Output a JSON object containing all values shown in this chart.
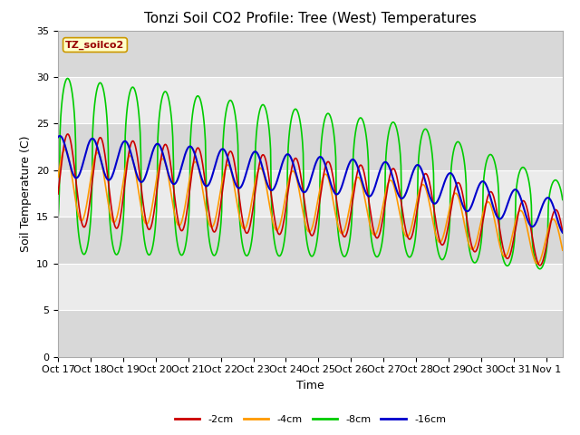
{
  "title": "Tonzi Soil CO2 Profile: Tree (West) Temperatures",
  "ylabel": "Soil Temperature (C)",
  "xlabel": "Time",
  "legend_label": "TZ_soilco2",
  "ylim": [
    0,
    35
  ],
  "series_labels": [
    "-2cm",
    "-4cm",
    "-8cm",
    "-16cm"
  ],
  "series_colors": [
    "#cc0000",
    "#ff9900",
    "#00cc00",
    "#0000cc"
  ],
  "x_tick_labels": [
    "Oct 17",
    "Oct 18",
    "Oct 19",
    "Oct 20",
    "Oct 21",
    "Oct 22",
    "Oct 23",
    "Oct 24",
    "Oct 25",
    "Oct 26",
    "Oct 27",
    "Oct 28",
    "Oct 29",
    "Oct 30",
    "Oct 31",
    "Nov 1"
  ],
  "background_color": "#ffffff",
  "plot_bg_dark": "#d8d8d8",
  "plot_bg_light": "#ebebeb",
  "title_fontsize": 11,
  "axis_fontsize": 9,
  "tick_fontsize": 8
}
